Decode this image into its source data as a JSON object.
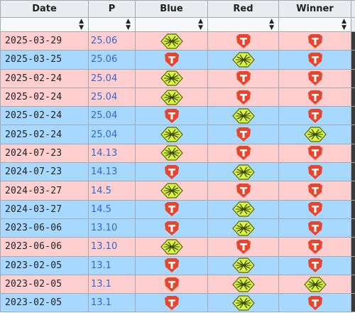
{
  "columns": [
    "Date",
    "P",
    "Blue",
    "Red",
    "Winner"
  ],
  "sort_icon": "sort-icon",
  "colors": {
    "row_red_team": "#ffcfcf",
    "row_blue_team": "#a7d8ff",
    "header_bg": "#eaecf0",
    "patch_link": "#3366cc",
    "team_a_logo": "#d9f542",
    "team_b_logo": "#e8452c"
  },
  "rows": [
    {
      "date": "2025-03-29",
      "patch": "25.06",
      "blue": "team-a-logo",
      "red": "team-b-logo",
      "winner": "team-b-logo",
      "row_color": "red"
    },
    {
      "date": "2025-03-25",
      "patch": "25.06",
      "blue": "team-b-logo",
      "red": "team-a-logo",
      "winner": "team-b-logo",
      "row_color": "blue"
    },
    {
      "date": "2025-02-24",
      "patch": "25.04",
      "blue": "team-a-logo",
      "red": "team-b-logo",
      "winner": "team-b-logo",
      "row_color": "red"
    },
    {
      "date": "2025-02-24",
      "patch": "25.04",
      "blue": "team-a-logo",
      "red": "team-b-logo",
      "winner": "team-b-logo",
      "row_color": "red"
    },
    {
      "date": "2025-02-24",
      "patch": "25.04",
      "blue": "team-b-logo",
      "red": "team-a-logo",
      "winner": "team-b-logo",
      "row_color": "blue"
    },
    {
      "date": "2025-02-24",
      "patch": "25.04",
      "blue": "team-a-logo",
      "red": "team-b-logo",
      "winner": "team-a-logo",
      "row_color": "blue"
    },
    {
      "date": "2024-07-23",
      "patch": "14.13",
      "blue": "team-a-logo",
      "red": "team-b-logo",
      "winner": "team-b-logo",
      "row_color": "red"
    },
    {
      "date": "2024-07-23",
      "patch": "14.13",
      "blue": "team-b-logo",
      "red": "team-a-logo",
      "winner": "team-b-logo",
      "row_color": "blue"
    },
    {
      "date": "2024-03-27",
      "patch": "14.5",
      "blue": "team-a-logo",
      "red": "team-b-logo",
      "winner": "team-b-logo",
      "row_color": "red"
    },
    {
      "date": "2024-03-27",
      "patch": "14.5",
      "blue": "team-b-logo",
      "red": "team-a-logo",
      "winner": "team-b-logo",
      "row_color": "blue"
    },
    {
      "date": "2023-06-06",
      "patch": "13.10",
      "blue": "team-b-logo",
      "red": "team-a-logo",
      "winner": "team-b-logo",
      "row_color": "blue"
    },
    {
      "date": "2023-06-06",
      "patch": "13.10",
      "blue": "team-a-logo",
      "red": "team-b-logo",
      "winner": "team-b-logo",
      "row_color": "red"
    },
    {
      "date": "2023-02-05",
      "patch": "13.1",
      "blue": "team-b-logo",
      "red": "team-a-logo",
      "winner": "team-b-logo",
      "row_color": "blue"
    },
    {
      "date": "2023-02-05",
      "patch": "13.1",
      "blue": "team-b-logo",
      "red": "team-a-logo",
      "winner": "team-a-logo",
      "row_color": "red"
    },
    {
      "date": "2023-02-05",
      "patch": "13.1",
      "blue": "team-b-logo",
      "red": "team-a-logo",
      "winner": "team-b-logo",
      "row_color": "blue"
    }
  ]
}
